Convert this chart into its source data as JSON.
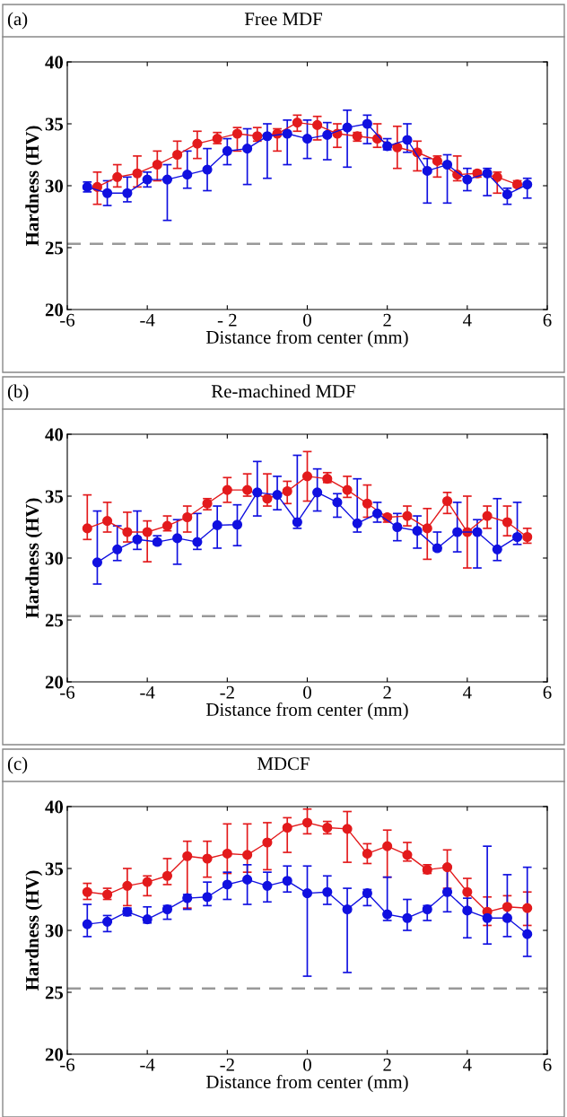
{
  "chart_data": [
    {
      "type": "line",
      "title": "Free MDF",
      "xlabel": "Distance from center (mm)",
      "ylabel": "Hardness (HV)",
      "annotations": [
        "(a)"
      ],
      "xlim": [
        -6,
        6
      ],
      "ylim": [
        20,
        40
      ],
      "xticks": [
        -6,
        -4,
        {
          "value": -2,
          "label": "- 2"
        },
        0,
        2,
        4,
        6
      ],
      "yticks": [
        20,
        25,
        30,
        35,
        40
      ],
      "grid": false,
      "legend": false,
      "marker": "circle",
      "line_style": "solid",
      "ref_lines": [
        {
          "axis": "y",
          "value": 25.3,
          "color": "#999999",
          "line_style": "dashed"
        }
      ],
      "series": [
        {
          "color": "#e31a1c",
          "x": [
            -5.25,
            -4.75,
            -4.25,
            -3.75,
            -3.25,
            -2.75,
            -2.25,
            -1.75,
            -1.25,
            -0.75,
            -0.25,
            0.25,
            0.75,
            1.25,
            1.75,
            2.25,
            2.75,
            3.25,
            3.75,
            4.25,
            4.75,
            5.25
          ],
          "values": [
            29.9,
            30.7,
            31.0,
            31.7,
            32.5,
            33.4,
            33.8,
            34.2,
            34.0,
            34.2,
            35.1,
            34.9,
            34.2,
            34.0,
            33.8,
            33.1,
            32.7,
            32.0,
            30.9,
            31.0,
            30.7,
            30.1
          ],
          "errors": [
            [
              28.5,
              31.1
            ],
            [
              29.9,
              31.7
            ],
            [
              29.9,
              32.4
            ],
            [
              30.4,
              32.8
            ],
            [
              31.4,
              33.6
            ],
            [
              32.2,
              34.4
            ],
            [
              33.4,
              34.3
            ],
            [
              32.8,
              34.7
            ],
            [
              33.6,
              34.7
            ],
            [
              32.8,
              34.6
            ],
            [
              34.4,
              35.7
            ],
            [
              33.7,
              35.6
            ],
            [
              33.1,
              35.0
            ],
            [
              33.6,
              34.3
            ],
            [
              33.1,
              35.0
            ],
            [
              31.4,
              34.8
            ],
            [
              31.2,
              33.6
            ],
            [
              30.7,
              32.4
            ],
            [
              30.4,
              32.4
            ],
            [
              30.7,
              31.2
            ],
            [
              29.4,
              31.1
            ],
            [
              29.9,
              30.4
            ]
          ]
        },
        {
          "color": "#1010e0",
          "x": [
            -5.5,
            -5,
            -4.5,
            -4,
            -3.5,
            -3,
            -2.5,
            -2,
            -1.5,
            -1,
            -0.5,
            0,
            0.5,
            1,
            1.5,
            2,
            2.5,
            3,
            3.5,
            4,
            4.5,
            5,
            5.5
          ],
          "values": [
            29.9,
            29.4,
            29.4,
            30.5,
            30.5,
            30.9,
            31.3,
            32.8,
            33.0,
            34.0,
            34.2,
            33.8,
            34.1,
            34.7,
            35.0,
            33.2,
            33.7,
            31.2,
            31.7,
            30.5,
            31.0,
            29.3,
            30.1
          ],
          "errors": [
            [
              29.5,
              30.3
            ],
            [
              28.4,
              30.4
            ],
            [
              28.7,
              30.7
            ],
            [
              29.9,
              31.1
            ],
            [
              27.2,
              31.7
            ],
            [
              29.8,
              32.8
            ],
            [
              29.6,
              33.0
            ],
            [
              31.7,
              33.8
            ],
            [
              30.1,
              34.6
            ],
            [
              30.6,
              35.0
            ],
            [
              31.7,
              35.3
            ],
            [
              32.2,
              35.3
            ],
            [
              32.1,
              35.1
            ],
            [
              31.5,
              36.1
            ],
            [
              33.4,
              35.7
            ],
            [
              32.9,
              33.8
            ],
            [
              32.7,
              35.0
            ],
            [
              28.6,
              32.2
            ],
            [
              28.6,
              32.5
            ],
            [
              29.6,
              31.4
            ],
            [
              29.2,
              31.4
            ],
            [
              28.5,
              29.8
            ],
            [
              29.0,
              30.6
            ]
          ]
        }
      ]
    },
    {
      "type": "line",
      "title": "Re-machined MDF",
      "xlabel": "Distance from center (mm)",
      "ylabel": "Hardness (HV)",
      "annotations": [
        "(b)"
      ],
      "xlim": [
        -6,
        6
      ],
      "ylim": [
        20,
        40
      ],
      "xticks": [
        -6,
        -4,
        -2,
        0,
        2,
        4,
        6
      ],
      "yticks": [
        20,
        25,
        30,
        35,
        40
      ],
      "grid": false,
      "legend": false,
      "marker": "circle",
      "line_style": "solid",
      "ref_lines": [
        {
          "axis": "y",
          "value": 25.3,
          "color": "#999999",
          "line_style": "dashed"
        }
      ],
      "series": [
        {
          "color": "#e31a1c",
          "x": [
            -5.5,
            -5,
            -4.5,
            -4,
            -3.5,
            -3,
            -2.5,
            -2,
            -1.5,
            -1,
            -0.5,
            0,
            0.5,
            1,
            1.5,
            2,
            2.5,
            3,
            3.5,
            4,
            4.5,
            5,
            5.5
          ],
          "values": [
            32.4,
            33.0,
            32.1,
            32.1,
            32.6,
            33.3,
            34.4,
            35.5,
            35.5,
            34.8,
            35.4,
            36.6,
            36.4,
            35.5,
            34.4,
            33.3,
            33.4,
            32.4,
            34.6,
            32.1,
            33.4,
            32.9,
            31.7
          ],
          "errors": [
            [
              31.5,
              35.1
            ],
            [
              32.1,
              34.5
            ],
            [
              31.3,
              33.7
            ],
            [
              29.7,
              33.0
            ],
            [
              32.2,
              33.4
            ],
            [
              32.1,
              34.2
            ],
            [
              33.9,
              34.8
            ],
            [
              34.5,
              36.5
            ],
            [
              35.0,
              36.8
            ],
            [
              34.2,
              36.8
            ],
            [
              34.4,
              36.2
            ],
            [
              34.6,
              38.6
            ],
            [
              36.1,
              36.9
            ],
            [
              34.9,
              36.6
            ],
            [
              33.3,
              35.9
            ],
            [
              32.9,
              33.5
            ],
            [
              32.6,
              34.2
            ],
            [
              29.9,
              34.0
            ],
            [
              33.6,
              35.3
            ],
            [
              29.2,
              35.0
            ],
            [
              32.4,
              34.2
            ],
            [
              31.8,
              34.2
            ],
            [
              31.2,
              32.4
            ]
          ]
        },
        {
          "color": "#1010e0",
          "x": [
            -5.25,
            -4.75,
            -4.25,
            -3.75,
            -3.25,
            -2.75,
            -2.25,
            -1.75,
            -1.25,
            -0.75,
            -0.25,
            0.25,
            0.75,
            1.25,
            1.75,
            2.25,
            2.75,
            3.25,
            3.75,
            4.25,
            4.75,
            5.25
          ],
          "values": [
            29.65,
            30.7,
            31.5,
            31.3,
            31.6,
            31.3,
            32.65,
            32.7,
            35.3,
            35.1,
            32.9,
            35.3,
            34.5,
            32.8,
            33.6,
            32.5,
            32.2,
            30.8,
            32.1,
            32.1,
            30.7,
            31.7
          ],
          "errors": [
            [
              27.9,
              33.8
            ],
            [
              29.8,
              32.6
            ],
            [
              30.7,
              33.8
            ],
            [
              31.1,
              31.8
            ],
            [
              29.5,
              33.1
            ],
            [
              30.7,
              33.6
            ],
            [
              30.8,
              34.2
            ],
            [
              31.0,
              34.3
            ],
            [
              33.4,
              37.8
            ],
            [
              33.9,
              36.6
            ],
            [
              32.4,
              38.3
            ],
            [
              33.8,
              37.2
            ],
            [
              33.3,
              35.2
            ],
            [
              32.1,
              36.4
            ],
            [
              32.9,
              34.5
            ],
            [
              31.4,
              33.6
            ],
            [
              30.8,
              33.4
            ],
            [
              30.6,
              32.1
            ],
            [
              30.5,
              34.5
            ],
            [
              29.2,
              33.1
            ],
            [
              29.8,
              34.8
            ],
            [
              31.1,
              34.5
            ]
          ]
        }
      ]
    },
    {
      "type": "line",
      "title": "MDCF",
      "xlabel": "Distance from center (mm)",
      "ylabel": "Hardness (HV)",
      "annotations": [
        "(c)"
      ],
      "xlim": [
        -6,
        6
      ],
      "ylim": [
        20,
        40
      ],
      "xticks": [
        -6,
        -4,
        -2,
        0,
        2,
        4,
        6
      ],
      "yticks": [
        20,
        25,
        30,
        35,
        40
      ],
      "grid": false,
      "legend": false,
      "marker": "circle",
      "line_style": "solid",
      "ref_lines": [
        {
          "axis": "y",
          "value": 25.3,
          "color": "#999999",
          "line_style": "dashed"
        }
      ],
      "series": [
        {
          "color": "#e31a1c",
          "x": [
            -5.5,
            -5,
            -4.5,
            -4,
            -3.5,
            -3,
            -2.5,
            -2,
            -1.5,
            -1,
            -0.5,
            0,
            0.5,
            1,
            1.5,
            2,
            2.5,
            3,
            3.5,
            4,
            4.5,
            5,
            5.5
          ],
          "values": [
            33.1,
            32.9,
            33.6,
            33.9,
            34.4,
            36.0,
            35.8,
            36.2,
            36.1,
            37.1,
            38.3,
            38.7,
            38.3,
            38.2,
            36.2,
            36.8,
            36.1,
            34.9,
            35.1,
            33.1,
            31.5,
            31.9,
            31.8
          ],
          "errors": [
            [
              32.5,
              33.8
            ],
            [
              32.5,
              33.4
            ],
            [
              32.0,
              35.0
            ],
            [
              32.8,
              34.4
            ],
            [
              33.7,
              35.8
            ],
            [
              31.8,
              37.2
            ],
            [
              34.3,
              37.2
            ],
            [
              34.6,
              38.6
            ],
            [
              34.7,
              38.6
            ],
            [
              34.9,
              38.7
            ],
            [
              36.3,
              39.1
            ],
            [
              37.8,
              39.8
            ],
            [
              37.8,
              38.8
            ],
            [
              35.5,
              39.6
            ],
            [
              35.4,
              37.0
            ],
            [
              34.3,
              38.1
            ],
            [
              35.6,
              37.1
            ],
            [
              34.6,
              35.3
            ],
            [
              33.4,
              36.5
            ],
            [
              31.8,
              34.2
            ],
            [
              30.4,
              32.7
            ],
            [
              30.8,
              32.8
            ],
            [
              30.4,
              33.1
            ]
          ]
        },
        {
          "color": "#1010e0",
          "x": [
            -5.5,
            -5,
            -4.5,
            -4,
            -3.5,
            -3,
            -2.5,
            -2,
            -1.5,
            -1,
            -0.5,
            0,
            0.5,
            1,
            1.5,
            2,
            2.5,
            3,
            3.5,
            4,
            4.5,
            5,
            5.5
          ],
          "values": [
            30.5,
            30.7,
            31.5,
            30.9,
            31.7,
            32.6,
            32.7,
            33.7,
            34.1,
            33.6,
            34.0,
            33.0,
            33.1,
            31.7,
            33.0,
            31.3,
            31.0,
            31.7,
            33.1,
            31.6,
            31.0,
            31.0,
            29.7
          ],
          "errors": [
            [
              29.5,
              32.1
            ],
            [
              29.9,
              31.2
            ],
            [
              31.2,
              31.8
            ],
            [
              30.6,
              31.9
            ],
            [
              30.9,
              32.0
            ],
            [
              31.7,
              32.9
            ],
            [
              32.0,
              33.9
            ],
            [
              32.5,
              34.7
            ],
            [
              32.1,
              35.3
            ],
            [
              32.3,
              34.7
            ],
            [
              33.1,
              35.2
            ],
            [
              26.3,
              35.2
            ],
            [
              32.1,
              34.4
            ],
            [
              26.6,
              33.4
            ],
            [
              32.0,
              33.3
            ],
            [
              30.8,
              34.3
            ],
            [
              30.0,
              32.5
            ],
            [
              30.8,
              32.0
            ],
            [
              31.5,
              35.2
            ],
            [
              29.4,
              32.6
            ],
            [
              28.9,
              36.8
            ],
            [
              29.5,
              34.5
            ],
            [
              27.9,
              35.1
            ]
          ]
        }
      ]
    }
  ]
}
